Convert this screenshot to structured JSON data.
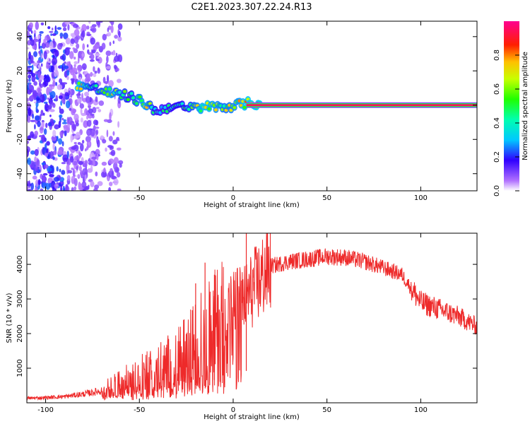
{
  "title": "C2E1.2023.307.22.24.R13",
  "chart_data": [
    {
      "type": "heatmap",
      "xlabel": "Height of straight line (km)",
      "ylabel": "Frequency (Hz)",
      "xlim": [
        -110,
        130
      ],
      "ylim": [
        -50,
        49
      ],
      "xticks": [
        -100,
        -50,
        0,
        50,
        100
      ],
      "yticks": [
        -40,
        -20,
        0,
        20,
        40
      ],
      "grid": false,
      "colorbar": {
        "label": "Normalized spectral amplitude",
        "range": [
          0,
          1
        ],
        "ticks": [
          0.0,
          0.2,
          0.4,
          0.6,
          0.8
        ],
        "colormap": [
          "#ffffff",
          "#8000ff",
          "#0000ff",
          "#00ffff",
          "#00ff00",
          "#ffff00",
          "#ff0000",
          "#ff0080"
        ]
      },
      "trace": {
        "x": [
          -83,
          -75,
          -65,
          -55,
          -47,
          -40,
          -33,
          -25,
          -15,
          -5,
          2,
          7,
          130
        ],
        "frequency": [
          12,
          10,
          7,
          5,
          1,
          -4,
          0,
          -2,
          -1,
          -1,
          0,
          1,
          0
        ],
        "amplitude": [
          0.85,
          0.55,
          0.75,
          0.55,
          0.8,
          0.45,
          0.5,
          0.55,
          0.85,
          0.7,
          0.75,
          0.85,
          0.95
        ]
      },
      "constant_line": {
        "x_start": 7,
        "x_end": 130,
        "frequency": 0,
        "amplitude": 0.95
      }
    },
    {
      "type": "line",
      "xlabel": "Height of straight line (km)",
      "ylabel": "SNR (10 * v/v)",
      "xlim": [
        -110,
        130
      ],
      "ylim": [
        0,
        4900
      ],
      "xticks": [
        -100,
        -50,
        0,
        50,
        100
      ],
      "yticks": [
        1000,
        2000,
        3000,
        4000
      ],
      "grid": false,
      "color": "#ee2a2a",
      "series": [
        {
          "x": [
            -110,
            -100,
            -90,
            -80,
            -70,
            -65,
            -60,
            -50,
            -40,
            -30,
            -25,
            -20,
            -15,
            -10,
            -5,
            0,
            5,
            10,
            15,
            20,
            30,
            40,
            50,
            60,
            70,
            80,
            90,
            95,
            100,
            110,
            120,
            130
          ],
          "y": [
            130,
            150,
            180,
            250,
            350,
            450,
            560,
            780,
            1000,
            1250,
            1450,
            1700,
            2000,
            2200,
            2500,
            2900,
            2950,
            3250,
            3600,
            3950,
            4080,
            4150,
            4230,
            4200,
            4080,
            3900,
            3700,
            3300,
            2900,
            2700,
            2500,
            2200
          ]
        }
      ],
      "spikes": [
        {
          "x": -20,
          "y": 3450
        },
        {
          "x": -15,
          "y": 4050
        },
        {
          "x": -10,
          "y": 3700
        },
        {
          "x": 7,
          "y": 4900
        }
      ]
    }
  ]
}
